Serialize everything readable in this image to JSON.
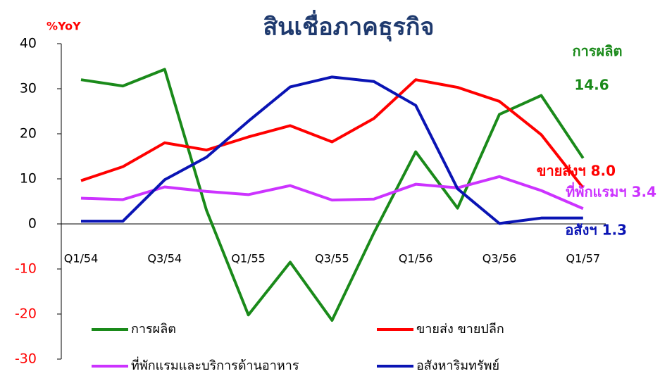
{
  "chart_data": {
    "type": "line",
    "title": "สินเชื่อภาคธุรกิจ",
    "y_label": "%YoY",
    "categories": [
      "Q1/54",
      null,
      "Q3/54",
      null,
      "Q1/55",
      null,
      "Q3/55",
      null,
      "Q1/56",
      null,
      "Q3/56",
      null,
      "Q1/57"
    ],
    "series": [
      {
        "name": "การผลิต",
        "color": "#1a8a1a",
        "values": [
          32,
          30.6,
          34.3,
          3,
          -20.2,
          -8.5,
          -21.4,
          -2,
          16,
          3.5,
          24.3,
          28.5,
          14.6
        ]
      },
      {
        "name": "ขายส่ง ขายปลีก",
        "color": "#ff0000",
        "values": [
          9.6,
          12.7,
          18,
          16.4,
          19.3,
          21.8,
          18.2,
          23.4,
          32,
          30.3,
          27.2,
          19.8,
          8.0
        ]
      },
      {
        "name": "ที่พักแรมและบริการด้านอาหาร",
        "color": "#cc33ff",
        "values": [
          5.7,
          5.4,
          8.2,
          7.2,
          6.5,
          8.5,
          5.3,
          5.5,
          8.8,
          8.0,
          10.5,
          7.4,
          3.4
        ]
      },
      {
        "name": "อสังหาริมทรัพย์",
        "color": "#0a14b4",
        "values": [
          0.6,
          0.6,
          9.8,
          14.8,
          22.8,
          30.4,
          32.6,
          31.6,
          26.3,
          7.8,
          0.1,
          1.3,
          1.3
        ]
      }
    ],
    "ylim": [
      -30,
      40
    ],
    "yticks": [
      -30,
      -20,
      -10,
      0,
      10,
      20,
      30,
      40
    ],
    "annotations": [
      {
        "text": "การผลิต",
        "color": "#1a8a1a"
      },
      {
        "text": "14.6",
        "color": "#1a8a1a"
      },
      {
        "text": "ขายส่งฯ 8.0",
        "color": "#ff0000"
      },
      {
        "text": "ที่พักแรมฯ 3.4",
        "color": "#cc33ff"
      },
      {
        "text": "อสังฯ  1.3",
        "color": "#0a14b4"
      }
    ]
  }
}
